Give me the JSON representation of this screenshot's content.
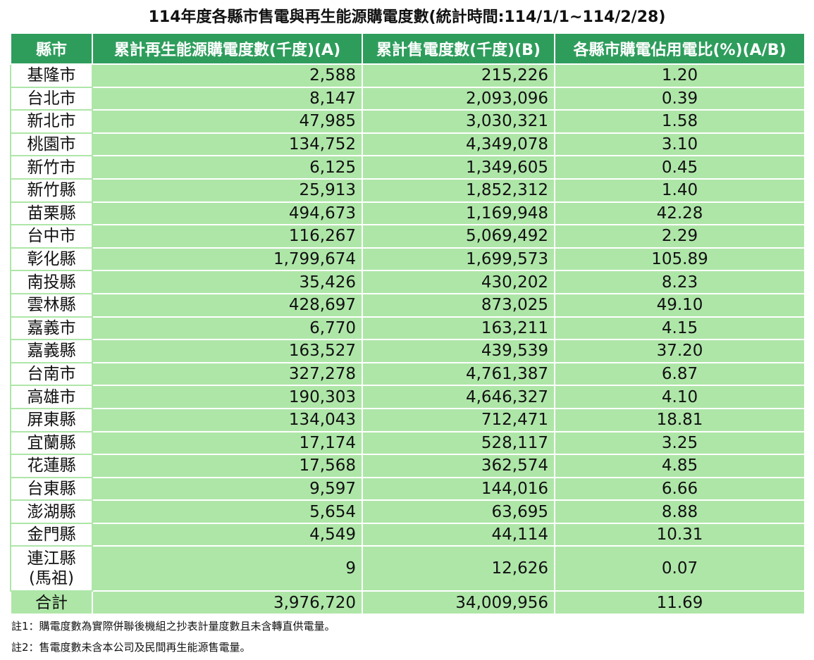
{
  "title": "114年度各縣市售電與再生能源購電度數(統計時間:114/1/1~114/2/28)",
  "headers": [
    "縣市",
    "累計再生能源購電度數(千度)(A)",
    "累計售電度數(千度)(B)",
    "各縣市購電佔用電比(%)(A/B)"
  ],
  "rows": [
    {
      "county": "基隆市",
      "a": "2,588",
      "b": "215,226",
      "ratio": "1.20"
    },
    {
      "county": "台北市",
      "a": "8,147",
      "b": "2,093,096",
      "ratio": "0.39"
    },
    {
      "county": "新北市",
      "a": "47,985",
      "b": "3,030,321",
      "ratio": "1.58"
    },
    {
      "county": "桃園市",
      "a": "134,752",
      "b": "4,349,078",
      "ratio": "3.10"
    },
    {
      "county": "新竹市",
      "a": "6,125",
      "b": "1,349,605",
      "ratio": "0.45"
    },
    {
      "county": "新竹縣",
      "a": "25,913",
      "b": "1,852,312",
      "ratio": "1.40"
    },
    {
      "county": "苗栗縣",
      "a": "494,673",
      "b": "1,169,948",
      "ratio": "42.28"
    },
    {
      "county": "台中市",
      "a": "116,267",
      "b": "5,069,492",
      "ratio": "2.29"
    },
    {
      "county": "彰化縣",
      "a": "1,799,674",
      "b": "1,699,573",
      "ratio": "105.89"
    },
    {
      "county": "南投縣",
      "a": "35,426",
      "b": "430,202",
      "ratio": "8.23"
    },
    {
      "county": "雲林縣",
      "a": "428,697",
      "b": "873,025",
      "ratio": "49.10"
    },
    {
      "county": "嘉義市",
      "a": "6,770",
      "b": "163,211",
      "ratio": "4.15"
    },
    {
      "county": "嘉義縣",
      "a": "163,527",
      "b": "439,539",
      "ratio": "37.20"
    },
    {
      "county": "台南市",
      "a": "327,278",
      "b": "4,761,387",
      "ratio": "6.87"
    },
    {
      "county": "高雄市",
      "a": "190,303",
      "b": "4,646,327",
      "ratio": "4.10"
    },
    {
      "county": "屏東縣",
      "a": "134,043",
      "b": "712,471",
      "ratio": "18.81"
    },
    {
      "county": "宜蘭縣",
      "a": "17,174",
      "b": "528,117",
      "ratio": "3.25"
    },
    {
      "county": "花蓮縣",
      "a": "17,568",
      "b": "362,574",
      "ratio": "4.85"
    },
    {
      "county": "台東縣",
      "a": "9,597",
      "b": "144,016",
      "ratio": "6.66"
    },
    {
      "county": "澎湖縣",
      "a": "5,654",
      "b": "63,695",
      "ratio": "8.88"
    },
    {
      "county": "金門縣",
      "a": "4,549",
      "b": "44,114",
      "ratio": "10.31"
    }
  ],
  "lienchiang": {
    "line1": "連江縣",
    "line2": "(馬祖)",
    "a": "9",
    "b": "12,626",
    "ratio": "0.07"
  },
  "total": {
    "label": "合計",
    "a": "3,976,720",
    "b": "34,009,956",
    "ratio": "11.69"
  },
  "notes": [
    "註1：購電度數為實際併聯後機組之抄表計量度數且未含轉直供電量。",
    "註2：售電度數未含本公司及民間再生能源售電量。"
  ],
  "colors": {
    "header_bg": "#2e9d5c",
    "cell_bg": "#aee6a8"
  }
}
